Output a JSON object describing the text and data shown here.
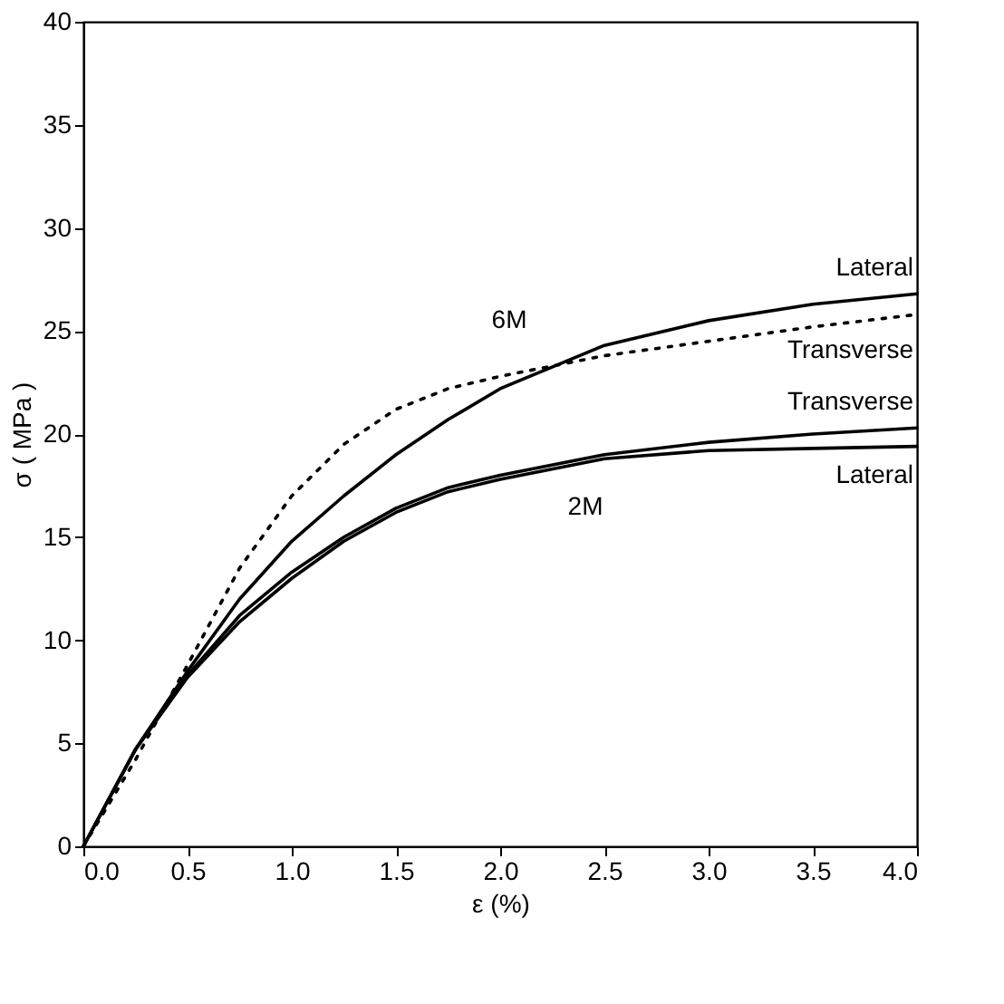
{
  "chart_data": {
    "type": "line",
    "xlabel": "ε (%)",
    "ylabel": "σ ( MPa )",
    "xlim": [
      0,
      4.0
    ],
    "xticks": [
      {
        "value": 0,
        "label": "0.0"
      },
      0.5,
      {
        "value": 1,
        "label": "1.0"
      },
      1.5,
      {
        "value": 2,
        "label": "2.0"
      },
      2.5,
      {
        "value": 3,
        "label": "3.0"
      },
      3.5,
      {
        "value": 4,
        "label": "4.0"
      }
    ],
    "ylim": [
      0,
      40
    ],
    "yticks": [
      0,
      5,
      10,
      15,
      20,
      25,
      30,
      35,
      40
    ],
    "grid": false,
    "marker": "none",
    "x": [
      0,
      0.25,
      0.5,
      0.75,
      1.0,
      1.25,
      1.5,
      1.75,
      2.0,
      2.5,
      3.0,
      3.5,
      4.0
    ],
    "series": [
      {
        "name": "Lateral",
        "color": "#000000",
        "line_style": "solid",
        "values": [
          0,
          4.7,
          8.5,
          12,
          14.8,
          17,
          19,
          20.7,
          22.2,
          24.3,
          25.5,
          26.3,
          26.8
        ]
      },
      {
        "name": "Transverse",
        "color": "#000000",
        "line_style": "dotted",
        "values": [
          0,
          4.2,
          8.8,
          13.5,
          17,
          19.5,
          21.2,
          22.2,
          22.8,
          23.8,
          24.5,
          25.2,
          25.8
        ]
      },
      {
        "name": "Transverse",
        "color": "#000000",
        "line_style": "solid",
        "values": [
          0,
          4.7,
          8.3,
          11.2,
          13.3,
          15,
          16.4,
          17.4,
          18,
          19,
          19.6,
          20,
          20.3
        ]
      },
      {
        "name": "Lateral",
        "color": "#000000",
        "line_style": "solid",
        "values": [
          0,
          4.7,
          8.2,
          10.9,
          13,
          14.8,
          16.2,
          17.2,
          17.8,
          18.8,
          19.2,
          19.3,
          19.4
        ]
      }
    ],
    "annotations": [
      "6M",
      "2M"
    ]
  }
}
